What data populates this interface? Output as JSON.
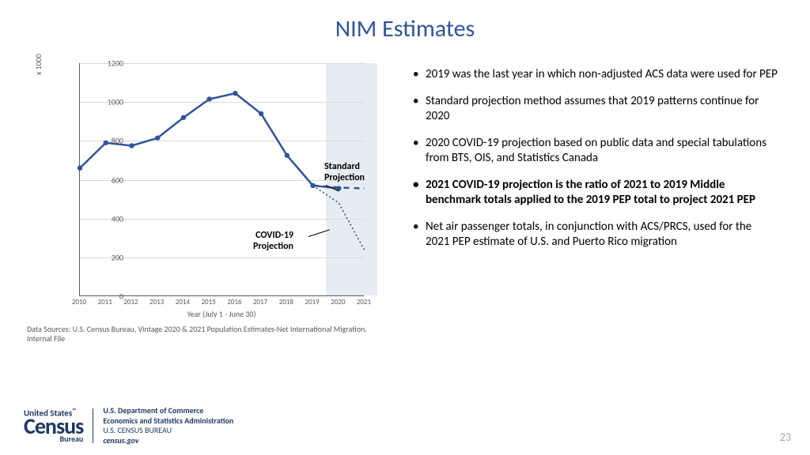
{
  "title": "NIM Estimates",
  "page_number": "23",
  "chart": {
    "y_multiplier_label": "x 1000",
    "x_axis_label": "Year (July 1 - June 30)",
    "ylim": [
      0,
      1200
    ],
    "ytick_step": 200,
    "yticks": [
      0,
      200,
      400,
      600,
      800,
      1000,
      1200
    ],
    "years": [
      "2010",
      "2011",
      "2012",
      "2013",
      "2014",
      "2015",
      "2016",
      "2017",
      "2018",
      "2019",
      "2020",
      "2021"
    ],
    "series_main": {
      "stroke": "#2f5597",
      "stroke_width": 2.5,
      "marker_fill": "#2f5597",
      "marker_radius": 3.2,
      "values": [
        660,
        790,
        775,
        815,
        920,
        1015,
        1045,
        940,
        725,
        570,
        555
      ]
    },
    "series_standard": {
      "stroke": "#2f5597",
      "stroke_width": 2.5,
      "dash": "7 6",
      "values_from_index": 9,
      "values": [
        570,
        560,
        555
      ]
    },
    "series_covid": {
      "stroke": "#2f5597",
      "stroke_width": 1.6,
      "dash": "2 3",
      "values_from_index": 9,
      "values": [
        570,
        480,
        235
      ]
    },
    "shade_start_index": 10,
    "shade_end_index": 11,
    "grid_color": "#d9d9d9",
    "axis_color": "#595959",
    "background": "#ffffff",
    "labels": {
      "standard": {
        "text1": "Standard",
        "text2": "Projection"
      },
      "covid": {
        "text1": "COVID-19",
        "text2": "Projection"
      }
    }
  },
  "source_note": "Data Sources: U.S. Census Bureau, Vintage 2020 & 2021 Population Estimates-Net International Migration. Internal File",
  "bullets": [
    {
      "text": "2019 was the last year in which non-adjusted ACS data were used for PEP",
      "bold": false
    },
    {
      "text": "Standard projection method assumes that 2019 patterns continue for 2020",
      "bold": false
    },
    {
      "text": "2020 COVID-19 projection based on public data and special tabulations from BTS, OIS, and Statistics Canada",
      "bold": false
    },
    {
      "text": "2021 COVID-19 projection is the ratio of 2021 to 2019 Middle benchmark totals applied to the 2019 PEP total to project 2021 PEP",
      "bold": true
    },
    {
      "text": "Net air passenger totals, in conjunction with ACS/PRCS, used for the 2021 PEP estimate of U.S. and Puerto Rico migration",
      "bold": false
    }
  ],
  "footer": {
    "logo": {
      "l1": "United States",
      "l2": "Census",
      "l3": "Bureau"
    },
    "dept": {
      "l1": "U.S. Department of Commerce",
      "l2": "Economics and Statistics Administration",
      "l3": "U.S. CENSUS BUREAU",
      "l4": "census.gov"
    }
  }
}
